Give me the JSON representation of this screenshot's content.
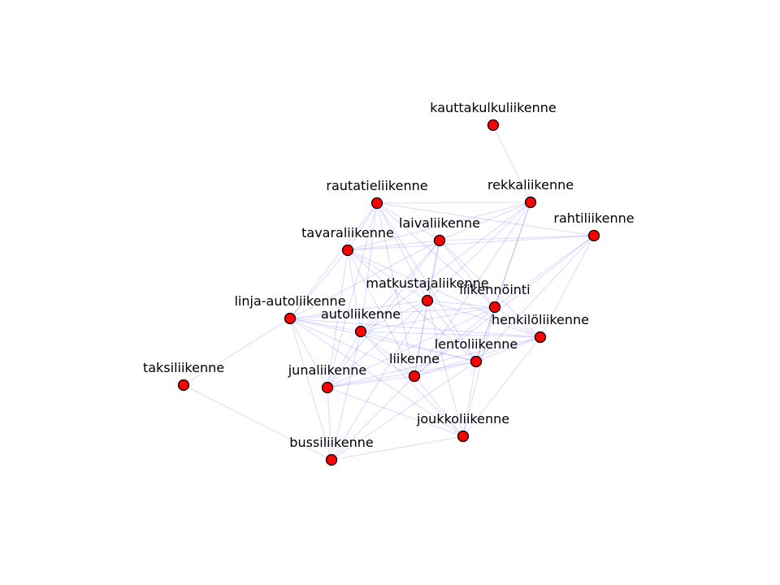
{
  "graph": {
    "node_fill": "#ff0000",
    "node_stroke": "#000000",
    "edge_color": "#0000ff",
    "nodes": [
      {
        "id": "kauttakulkuliikenne",
        "label": "kauttakulkuliikenne"
      },
      {
        "id": "rautatieliikenne",
        "label": "rautatieliikenne"
      },
      {
        "id": "rekkaliikenne",
        "label": "rekkaliikenne"
      },
      {
        "id": "rahtiliikenne",
        "label": "rahtiliikenne"
      },
      {
        "id": "laivaliikenne",
        "label": "laivaliikenne"
      },
      {
        "id": "tavaraliikenne",
        "label": "tavaraliikenne"
      },
      {
        "id": "matkustajaliikenne",
        "label": "matkustajaliikenne"
      },
      {
        "id": "liikennointi",
        "label": "liikennöinti"
      },
      {
        "id": "linja-autoliikenne",
        "label": "linja-autoliikenne"
      },
      {
        "id": "autoliikenne",
        "label": "autoliikenne"
      },
      {
        "id": "henkiloliikenne",
        "label": "henkilöliikenne"
      },
      {
        "id": "lentoliikenne",
        "label": "lentoliikenne"
      },
      {
        "id": "liikenne",
        "label": "liikenne"
      },
      {
        "id": "taksiliikenne",
        "label": "taksiliikenne"
      },
      {
        "id": "junaliikenne",
        "label": "junaliikenne"
      },
      {
        "id": "joukkoliikenne",
        "label": "joukkoliikenne"
      },
      {
        "id": "bussiliikenne",
        "label": "bussiliikenne"
      }
    ],
    "edges": [
      [
        "kauttakulkuliikenne",
        "rekkaliikenne"
      ],
      [
        "rautatieliikenne",
        "rekkaliikenne"
      ],
      [
        "rautatieliikenne",
        "rahtiliikenne"
      ],
      [
        "rautatieliikenne",
        "laivaliikenne"
      ],
      [
        "rautatieliikenne",
        "tavaraliikenne"
      ],
      [
        "rautatieliikenne",
        "matkustajaliikenne"
      ],
      [
        "rautatieliikenne",
        "liikennointi"
      ],
      [
        "rautatieliikenne",
        "linja-autoliikenne"
      ],
      [
        "rautatieliikenne",
        "autoliikenne"
      ],
      [
        "rautatieliikenne",
        "liikenne"
      ],
      [
        "rautatieliikenne",
        "junaliikenne"
      ],
      [
        "rautatieliikenne",
        "lentoliikenne"
      ],
      [
        "rekkaliikenne",
        "tavaraliikenne"
      ],
      [
        "rekkaliikenne",
        "laivaliikenne"
      ],
      [
        "rekkaliikenne",
        "matkustajaliikenne"
      ],
      [
        "rekkaliikenne",
        "liikennointi"
      ],
      [
        "rekkaliikenne",
        "autoliikenne"
      ],
      [
        "rekkaliikenne",
        "lentoliikenne"
      ],
      [
        "rekkaliikenne",
        "liikenne"
      ],
      [
        "rahtiliikenne",
        "laivaliikenne"
      ],
      [
        "rahtiliikenne",
        "tavaraliikenne"
      ],
      [
        "rahtiliikenne",
        "liikennointi"
      ],
      [
        "rahtiliikenne",
        "henkiloliikenne"
      ],
      [
        "rahtiliikenne",
        "lentoliikenne"
      ],
      [
        "rahtiliikenne",
        "liikenne"
      ],
      [
        "laivaliikenne",
        "tavaraliikenne"
      ],
      [
        "laivaliikenne",
        "matkustajaliikenne"
      ],
      [
        "laivaliikenne",
        "liikennointi"
      ],
      [
        "laivaliikenne",
        "autoliikenne"
      ],
      [
        "laivaliikenne",
        "liikenne"
      ],
      [
        "laivaliikenne",
        "junaliikenne"
      ],
      [
        "laivaliikenne",
        "henkiloliikenne"
      ],
      [
        "laivaliikenne",
        "linja-autoliikenne"
      ],
      [
        "tavaraliikenne",
        "matkustajaliikenne"
      ],
      [
        "tavaraliikenne",
        "linja-autoliikenne"
      ],
      [
        "tavaraliikenne",
        "autoliikenne"
      ],
      [
        "tavaraliikenne",
        "liikenne"
      ],
      [
        "tavaraliikenne",
        "junaliikenne"
      ],
      [
        "tavaraliikenne",
        "lentoliikenne"
      ],
      [
        "tavaraliikenne",
        "henkiloliikenne"
      ],
      [
        "matkustajaliikenne",
        "liikennointi"
      ],
      [
        "matkustajaliikenne",
        "autoliikenne"
      ],
      [
        "matkustajaliikenne",
        "henkiloliikenne"
      ],
      [
        "matkustajaliikenne",
        "lentoliikenne"
      ],
      [
        "matkustajaliikenne",
        "liikenne"
      ],
      [
        "matkustajaliikenne",
        "junaliikenne"
      ],
      [
        "matkustajaliikenne",
        "linja-autoliikenne"
      ],
      [
        "matkustajaliikenne",
        "joukkoliikenne"
      ],
      [
        "matkustajaliikenne",
        "bussiliikenne"
      ],
      [
        "liikennointi",
        "autoliikenne"
      ],
      [
        "liikennointi",
        "henkiloliikenne"
      ],
      [
        "liikennointi",
        "lentoliikenne"
      ],
      [
        "liikennointi",
        "liikenne"
      ],
      [
        "liikennointi",
        "junaliikenne"
      ],
      [
        "liikennointi",
        "joukkoliikenne"
      ],
      [
        "liikennointi",
        "linja-autoliikenne"
      ],
      [
        "linja-autoliikenne",
        "autoliikenne"
      ],
      [
        "linja-autoliikenne",
        "taksiliikenne"
      ],
      [
        "linja-autoliikenne",
        "junaliikenne"
      ],
      [
        "linja-autoliikenne",
        "bussiliikenne"
      ],
      [
        "linja-autoliikenne",
        "liikenne"
      ],
      [
        "linja-autoliikenne",
        "lentoliikenne"
      ],
      [
        "linja-autoliikenne",
        "henkiloliikenne"
      ],
      [
        "linja-autoliikenne",
        "joukkoliikenne"
      ],
      [
        "autoliikenne",
        "liikenne"
      ],
      [
        "autoliikenne",
        "junaliikenne"
      ],
      [
        "autoliikenne",
        "lentoliikenne"
      ],
      [
        "autoliikenne",
        "henkiloliikenne"
      ],
      [
        "autoliikenne",
        "bussiliikenne"
      ],
      [
        "autoliikenne",
        "joukkoliikenne"
      ],
      [
        "henkiloliikenne",
        "lentoliikenne"
      ],
      [
        "henkiloliikenne",
        "liikenne"
      ],
      [
        "henkiloliikenne",
        "junaliikenne"
      ],
      [
        "henkiloliikenne",
        "joukkoliikenne"
      ],
      [
        "lentoliikenne",
        "liikenne"
      ],
      [
        "lentoliikenne",
        "junaliikenne"
      ],
      [
        "lentoliikenne",
        "joukkoliikenne"
      ],
      [
        "lentoliikenne",
        "bussiliikenne"
      ],
      [
        "liikenne",
        "junaliikenne"
      ],
      [
        "liikenne",
        "joukkoliikenne"
      ],
      [
        "liikenne",
        "bussiliikenne"
      ],
      [
        "taksiliikenne",
        "bussiliikenne"
      ],
      [
        "junaliikenne",
        "bussiliikenne"
      ],
      [
        "junaliikenne",
        "joukkoliikenne"
      ],
      [
        "joukkoliikenne",
        "bussiliikenne"
      ]
    ]
  }
}
